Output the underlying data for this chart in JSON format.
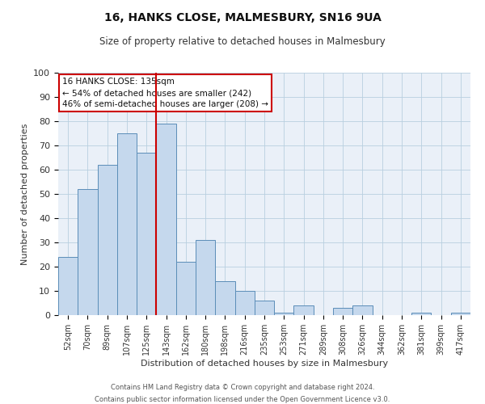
{
  "title": "16, HANKS CLOSE, MALMESBURY, SN16 9UA",
  "subtitle": "Size of property relative to detached houses in Malmesbury",
  "xlabel": "Distribution of detached houses by size in Malmesbury",
  "ylabel": "Number of detached properties",
  "bar_labels": [
    "52sqm",
    "70sqm",
    "89sqm",
    "107sqm",
    "125sqm",
    "143sqm",
    "162sqm",
    "180sqm",
    "198sqm",
    "216sqm",
    "235sqm",
    "253sqm",
    "271sqm",
    "289sqm",
    "308sqm",
    "326sqm",
    "344sqm",
    "362sqm",
    "381sqm",
    "399sqm",
    "417sqm"
  ],
  "bar_values": [
    24,
    52,
    62,
    75,
    67,
    79,
    22,
    31,
    14,
    10,
    6,
    1,
    4,
    0,
    3,
    4,
    0,
    0,
    1,
    0,
    1
  ],
  "bar_color": "#c5d8ed",
  "bar_edge_color": "#5b8db8",
  "vline_color": "#cc0000",
  "annotation_title": "16 HANKS CLOSE: 135sqm",
  "annotation_line1": "← 54% of detached houses are smaller (242)",
  "annotation_line2": "46% of semi-detached houses are larger (208) →",
  "annotation_box_color": "#ffffff",
  "annotation_box_edge": "#cc0000",
  "ylim": [
    0,
    100
  ],
  "yticks": [
    0,
    10,
    20,
    30,
    40,
    50,
    60,
    70,
    80,
    90,
    100
  ],
  "footer1": "Contains HM Land Registry data © Crown copyright and database right 2024.",
  "footer2": "Contains public sector information licensed under the Open Government Licence v3.0.",
  "bg_color": "#eaf0f8",
  "fig_bg": "#ffffff"
}
